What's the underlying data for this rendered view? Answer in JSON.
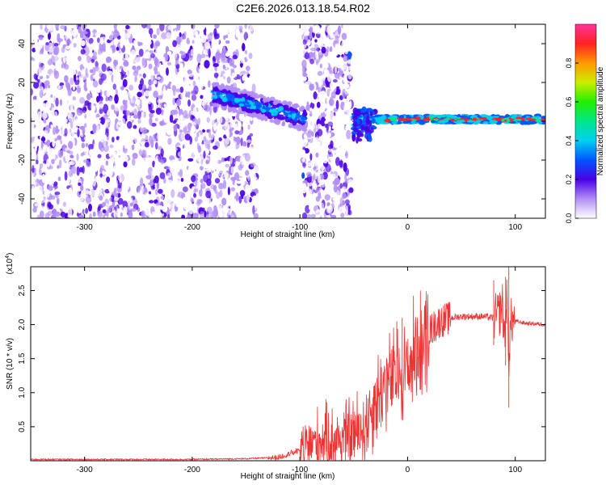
{
  "title": "C2E6.2026.013.18.54.R02",
  "chart_data": [
    {
      "type": "heatmap",
      "xlabel": "Height of straight line (km)",
      "ylabel": "Frequency (Hz)",
      "xlim": [
        -350,
        128
      ],
      "ylim": [
        -50,
        50
      ],
      "x_ticks": [
        -300,
        -200,
        -100,
        0,
        100
      ],
      "y_ticks": [
        -40,
        -20,
        0,
        20,
        40
      ],
      "grid": false,
      "colorbar": {
        "label": "Normalized spectral amplitude",
        "range": [
          0,
          1
        ],
        "ticks": [
          "0.0",
          "0.2",
          "0.4",
          "0.6",
          "0.8"
        ]
      },
      "features": [
        {
          "x_start": -350,
          "x_end": -150,
          "description_freq": [
            -50,
            50
          ],
          "intensity": 0.15
        },
        {
          "x_start": -175,
          "x_end": -110,
          "freq_center": 12,
          "intensity": 0.35
        },
        {
          "x_start": -110,
          "x_end": -95,
          "freq_center": 5,
          "intensity": 0.3
        },
        {
          "x_start": -97,
          "x_end": -50,
          "description_freq": [
            -50,
            50
          ],
          "intensity": 0.15
        },
        {
          "x_start": -45,
          "x_end": 128,
          "freq_center": 1,
          "intensity": 0.9
        }
      ]
    },
    {
      "type": "line",
      "xlabel": "Height of straight line (km)",
      "ylabel": "SNR (10 * v/v)",
      "y_multiplier": "(x10",
      "y_multiplier_exp": "4",
      "y_multiplier_close": ")",
      "xlim": [
        -350,
        128
      ],
      "ylim": [
        0,
        2.85
      ],
      "x_ticks": [
        -300,
        -200,
        -100,
        0,
        100
      ],
      "y_ticks": [
        "0.5",
        "1.0",
        "1.5",
        "2.0",
        "2.5"
      ],
      "grid": false,
      "series": [
        {
          "color": "#ee3333",
          "x": [
            -350,
            -300,
            -250,
            -200,
            -150,
            -120,
            -110,
            -100,
            -90,
            -80,
            -70,
            -60,
            -50,
            -40,
            -30,
            -20,
            -10,
            0,
            10,
            20,
            30,
            40,
            50,
            60,
            70,
            80,
            85,
            88,
            90,
            92,
            94,
            96,
            100,
            110,
            120,
            128
          ],
          "y": [
            0.02,
            0.02,
            0.02,
            0.02,
            0.03,
            0.05,
            0.1,
            0.15,
            0.25,
            0.3,
            0.3,
            0.33,
            0.38,
            0.5,
            0.9,
            1.15,
            1.25,
            1.35,
            1.7,
            1.9,
            2.05,
            2.1,
            2.12,
            2.12,
            2.12,
            2.1,
            2.15,
            2.3,
            1.8,
            2.4,
            1.5,
            2.05,
            2.05,
            2.02,
            2.01,
            2.0
          ]
        }
      ]
    }
  ]
}
